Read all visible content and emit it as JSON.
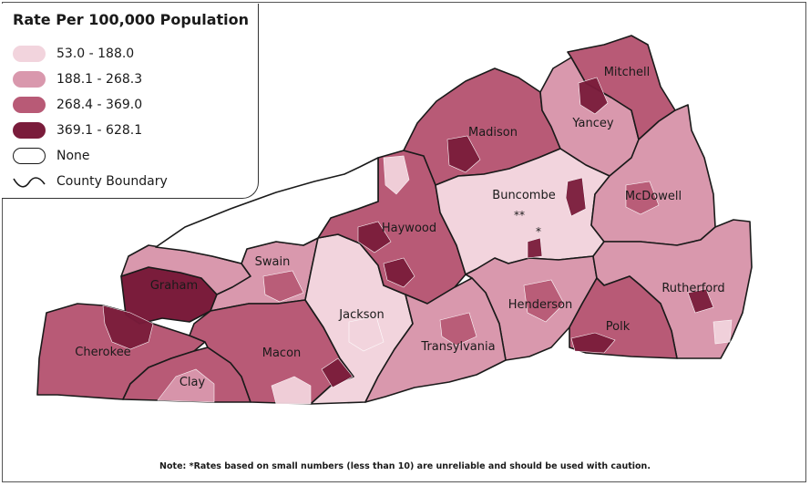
{
  "legend": {
    "title": "Rate Per 100,000 Population",
    "items": [
      {
        "label": "53.0 - 188.0",
        "color": "#f2d4dd"
      },
      {
        "label": "188.1 - 268.3",
        "color": "#d998ad"
      },
      {
        "label": "268.4 - 369.0",
        "color": "#b85a76"
      },
      {
        "label": "369.1 - 628.1",
        "color": "#7a1c3b"
      },
      {
        "label": "None",
        "color": "#ffffff"
      },
      {
        "label": "County Boundary",
        "color": "#1a1a1a"
      }
    ]
  },
  "counties": [
    {
      "name": "Mitchell",
      "class": "268.4 - 369.0"
    },
    {
      "name": "Yancey",
      "class": "188.1 - 268.3"
    },
    {
      "name": "Madison",
      "class": "268.4 - 369.0"
    },
    {
      "name": "Buncombe",
      "class": "53.0 - 188.0"
    },
    {
      "name": "McDowell",
      "class": "188.1 - 268.3"
    },
    {
      "name": "Haywood",
      "class": "268.4 - 369.0"
    },
    {
      "name": "Swain",
      "class": "188.1 - 268.3"
    },
    {
      "name": "Graham",
      "class": "369.1 - 628.1"
    },
    {
      "name": "Jackson",
      "class": "53.0 - 188.0"
    },
    {
      "name": "Henderson",
      "class": "188.1 - 268.3"
    },
    {
      "name": "Rutherford",
      "class": "188.1 - 268.3"
    },
    {
      "name": "Polk",
      "class": "268.4 - 369.0"
    },
    {
      "name": "Transylvania",
      "class": "188.1 - 268.3"
    },
    {
      "name": "Macon",
      "class": "268.4 - 369.0"
    },
    {
      "name": "Cherokee",
      "class": "268.4 - 369.0"
    },
    {
      "name": "Clay",
      "class": "268.4 - 369.0"
    }
  ],
  "markers": {
    "buncombe_double": "**",
    "buncombe_single": "*"
  },
  "note": "Note:  *Rates based on small numbers (less than 10) are unreliable and should be used with caution."
}
